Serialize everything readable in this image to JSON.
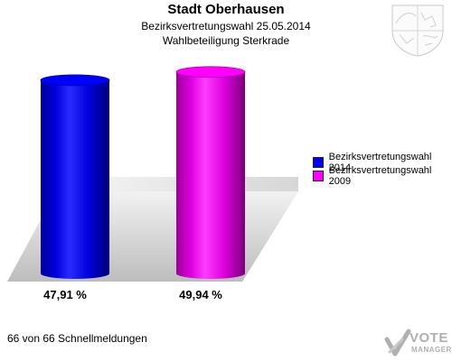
{
  "chart_data": {
    "type": "bar",
    "title": "Stadt Oberhausen",
    "subtitle_1": "Bezirksvertretungswahl 25.05.2014",
    "subtitle_2": "Wahlbeteiligung Sterkrade",
    "categories": [
      "Bezirksvertretungswahl 2014",
      "Bezirksvertretungswahl 2009"
    ],
    "values": [
      47.91,
      49.94
    ],
    "value_labels": [
      "47,91 %",
      "49,94 %"
    ],
    "colors": [
      "#0000ff",
      "#ff00ff"
    ],
    "legend": [
      {
        "label": "Bezirksvertretungswahl 2014",
        "color": "#0000ff"
      },
      {
        "label": "Bezirksvertretungswahl 2009",
        "color": "#ff00ff"
      }
    ],
    "legend_position": "right",
    "grid": false,
    "style": "3d-cylinder"
  },
  "footer": {
    "text": "66 von 66 Schnellmeldungen"
  },
  "logo": {
    "line1": "VOTE",
    "line2": "MANAGER",
    "icon": "vote-manager-check-icon"
  },
  "crest_icon": "coat-of-arms-icon"
}
